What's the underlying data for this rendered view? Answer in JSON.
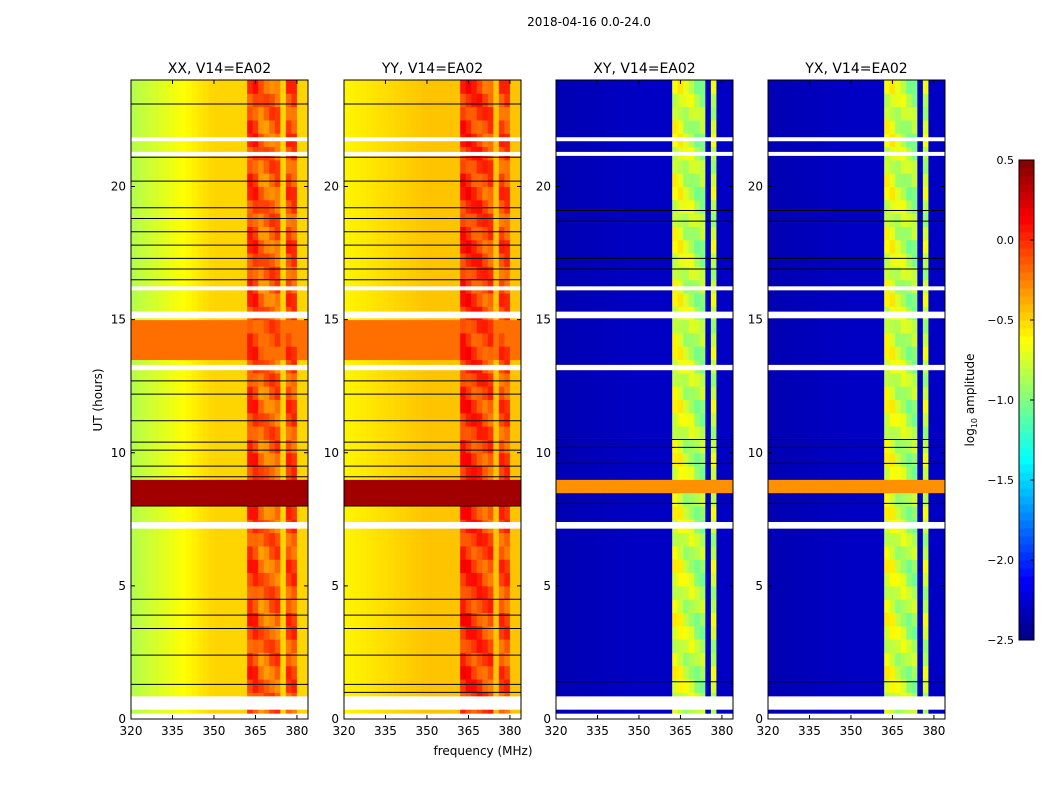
{
  "chart_data": {
    "type": "heatmap",
    "title": "2018-04-16 0.0-24.0",
    "xlabel": "frequency (MHz)",
    "ylabel": "UT (hours)",
    "xlim": [
      320,
      384
    ],
    "ylim": [
      0,
      24
    ],
    "xticks": [
      "320",
      "335",
      "350",
      "365",
      "380"
    ],
    "xtick_values": [
      320,
      335,
      350,
      365,
      380
    ],
    "yticks": [
      "0",
      "5",
      "10",
      "15",
      "20"
    ],
    "ytick_values": [
      0,
      5,
      10,
      15,
      20
    ],
    "colorbar": {
      "label_main": "log",
      "label_sub": "10",
      "label_rest": " amplitude",
      "range": [
        -2.5,
        0.5
      ],
      "ticks": [
        "0.5",
        "0.0",
        "−0.5",
        "−1.0",
        "−1.5",
        "−2.0",
        "−2.5"
      ],
      "tick_values": [
        0.5,
        0.0,
        -0.5,
        -1.0,
        -1.5,
        -2.0,
        -2.5
      ],
      "colormap": "jet"
    },
    "flagged_hours": [
      [
        0.0,
        0.2
      ],
      [
        0.35,
        0.85
      ],
      [
        7.15,
        7.4
      ],
      [
        13.1,
        13.3
      ],
      [
        15.05,
        15.3
      ],
      [
        16.1,
        16.25
      ],
      [
        21.15,
        21.3
      ],
      [
        21.7,
        21.85
      ]
    ],
    "panels": [
      {
        "title": "XX, V14=EA02",
        "base_low": -0.85,
        "base_high": -0.5,
        "bands": [
          [
            362,
            366,
            -0.05
          ],
          [
            367,
            370,
            -0.2
          ],
          [
            371,
            375,
            -0.15
          ],
          [
            376,
            380,
            -0.1
          ]
        ],
        "hot_hours": [
          [
            8.2,
            9.0,
            0.4
          ],
          [
            13.3,
            15.0,
            -0.2
          ]
        ],
        "black_lines": [
          1.3,
          2.4,
          3.4,
          3.9,
          4.5,
          8.0,
          9.1,
          9.5,
          10.1,
          10.4,
          11.2,
          12.2,
          12.7,
          16.5,
          16.9,
          17.3,
          17.8,
          18.3,
          18.8,
          19.2,
          20.2,
          21.1,
          23.1
        ]
      },
      {
        "title": "YY, V14=EA02",
        "base_low": -0.6,
        "base_high": -0.45,
        "bands": [
          [
            362,
            366,
            0.0
          ],
          [
            366,
            370,
            -0.05
          ],
          [
            371,
            375,
            -0.1
          ],
          [
            376,
            380,
            -0.1
          ]
        ],
        "hot_hours": [
          [
            8.2,
            9.0,
            0.4
          ],
          [
            13.3,
            15.0,
            -0.2
          ]
        ],
        "black_lines": [
          1.0,
          1.3,
          2.4,
          3.4,
          3.9,
          4.5,
          8.0,
          9.1,
          9.5,
          10.1,
          10.4,
          11.2,
          12.2,
          12.7,
          16.5,
          16.9,
          17.3,
          17.8,
          18.3,
          18.8,
          19.2,
          20.2,
          21.1,
          23.1
        ]
      },
      {
        "title": "XY, V14=EA02",
        "base_low": -2.35,
        "base_high": -2.3,
        "bands": [
          [
            362,
            366,
            -0.7
          ],
          [
            366,
            370,
            -0.8
          ],
          [
            371,
            375,
            -0.9
          ],
          [
            376,
            379,
            -0.8
          ]
        ],
        "hot_hours": [
          [
            8.4,
            9.1,
            -0.3
          ]
        ],
        "black_lines": [
          1.4,
          8.1,
          9.6,
          10.2,
          10.5,
          16.9,
          17.3,
          18.7,
          19.1
        ]
      },
      {
        "title": "YX, V14=EA02",
        "base_low": -2.35,
        "base_high": -2.3,
        "bands": [
          [
            362,
            366,
            -0.7
          ],
          [
            366,
            370,
            -0.8
          ],
          [
            371,
            375,
            -0.9
          ],
          [
            376,
            379,
            -0.8
          ]
        ],
        "hot_hours": [
          [
            8.4,
            9.1,
            -0.3
          ]
        ],
        "black_lines": [
          1.4,
          8.1,
          9.6,
          10.2,
          10.5,
          16.9,
          17.3,
          18.7,
          19.1
        ]
      }
    ]
  }
}
